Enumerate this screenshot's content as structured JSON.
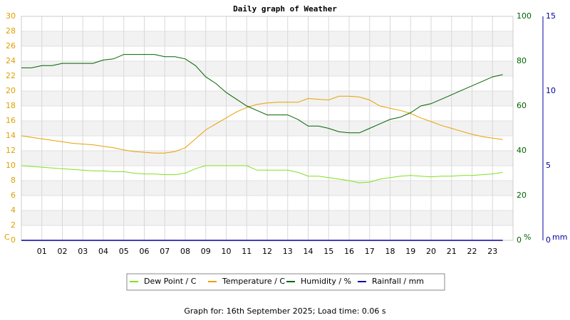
{
  "chart_data": {
    "type": "line",
    "title": "Daily graph of Weather",
    "footer": "Graph for: 16th September 2025; Load time: 0.06 s",
    "y_unit": "C",
    "y2_unit": "%",
    "y3_unit": "mm",
    "xlim": [
      0,
      24
    ],
    "xticks": [
      {
        "value": 1,
        "label": "01"
      },
      {
        "value": 2,
        "label": "02"
      },
      {
        "value": 3,
        "label": "03"
      },
      {
        "value": 4,
        "label": "04"
      },
      {
        "value": 5,
        "label": "05"
      },
      {
        "value": 6,
        "label": "06"
      },
      {
        "value": 7,
        "label": "07"
      },
      {
        "value": 8,
        "label": "08"
      },
      {
        "value": 9,
        "label": "09"
      },
      {
        "value": 10,
        "label": "10"
      },
      {
        "value": 11,
        "label": "11"
      },
      {
        "value": 12,
        "label": "12"
      },
      {
        "value": 13,
        "label": "13"
      },
      {
        "value": 14,
        "label": "14"
      },
      {
        "value": 15,
        "label": "15"
      },
      {
        "value": 16,
        "label": "16"
      },
      {
        "value": 17,
        "label": "17"
      },
      {
        "value": 18,
        "label": "18"
      },
      {
        "value": 19,
        "label": "19"
      },
      {
        "value": 20,
        "label": "20"
      },
      {
        "value": 21,
        "label": "21"
      },
      {
        "value": 22,
        "label": "22"
      },
      {
        "value": 23,
        "label": "23"
      }
    ],
    "ylim": [
      0,
      30
    ],
    "yticks": [
      0,
      2,
      4,
      6,
      8,
      10,
      12,
      14,
      16,
      18,
      20,
      22,
      24,
      26,
      28,
      30
    ],
    "y2lim": [
      0,
      100
    ],
    "y2ticks": [
      0,
      20,
      40,
      60,
      80,
      100
    ],
    "y3lim": [
      0,
      15
    ],
    "y3ticks": [
      0,
      5,
      10,
      15
    ],
    "grid": true,
    "x": [
      0,
      0.5,
      1,
      1.5,
      2,
      2.5,
      3,
      3.5,
      4,
      4.5,
      5,
      5.5,
      6,
      6.5,
      7,
      7.5,
      8,
      8.5,
      9,
      9.5,
      10,
      10.5,
      11,
      11.5,
      12,
      12.5,
      13,
      13.5,
      14,
      14.5,
      15,
      15.5,
      16,
      16.5,
      17,
      17.5,
      18,
      18.5,
      19,
      19.5,
      20,
      20.5,
      21,
      21.5,
      22,
      22.5,
      23,
      23.5
    ],
    "series": [
      {
        "name": "Dew Point / C",
        "color": "#80e020",
        "axis": "y",
        "values": [
          10,
          9.9,
          9.8,
          9.7,
          9.6,
          9.5,
          9.4,
          9.3,
          9.3,
          9.2,
          9.2,
          9.0,
          8.9,
          8.9,
          8.8,
          8.8,
          9.0,
          9.6,
          10,
          10,
          10,
          10,
          10,
          9.4,
          9.4,
          9.4,
          9.4,
          9.1,
          8.6,
          8.6,
          8.4,
          8.2,
          8.0,
          7.7,
          7.8,
          8.2,
          8.4,
          8.6,
          8.7,
          8.6,
          8.5,
          8.6,
          8.6,
          8.7,
          8.7,
          8.8,
          8.9,
          9.1
        ]
      },
      {
        "name": "Temperature / C",
        "color": "#e8a000",
        "axis": "y",
        "values": [
          14.0,
          13.8,
          13.6,
          13.4,
          13.2,
          13.0,
          12.9,
          12.8,
          12.6,
          12.4,
          12.1,
          11.9,
          11.8,
          11.7,
          11.7,
          11.9,
          12.4,
          13.6,
          14.8,
          15.6,
          16.4,
          17.2,
          17.8,
          18.2,
          18.4,
          18.5,
          18.5,
          18.5,
          19.0,
          18.9,
          18.8,
          19.3,
          19.3,
          19.2,
          18.8,
          18.0,
          17.7,
          17.4,
          17.0,
          16.4,
          15.9,
          15.4,
          15.0,
          14.6,
          14.2,
          13.9,
          13.7,
          13.5
        ]
      },
      {
        "name": "Humidity / %",
        "color": "#006400",
        "axis": "y2",
        "values": [
          77,
          77,
          78,
          78,
          79,
          79,
          79,
          79,
          80.5,
          81,
          83,
          83,
          83,
          83,
          82,
          82,
          81,
          78,
          73,
          70,
          66,
          63,
          60,
          58,
          56,
          56,
          56,
          54,
          51,
          51,
          50,
          48.5,
          48,
          48,
          50,
          52,
          54,
          55,
          57,
          60,
          61,
          63,
          65,
          67,
          69,
          71,
          73,
          74
        ]
      },
      {
        "name": "Rainfall / mm",
        "color": "#0000a0",
        "axis": "y3",
        "values": [
          0,
          0,
          0,
          0,
          0,
          0,
          0,
          0,
          0,
          0,
          0,
          0,
          0,
          0,
          0,
          0,
          0,
          0,
          0,
          0,
          0,
          0,
          0,
          0,
          0,
          0,
          0,
          0,
          0,
          0,
          0,
          0,
          0,
          0,
          0,
          0,
          0,
          0,
          0,
          0,
          0,
          0,
          0,
          0,
          0,
          0,
          0,
          0
        ]
      }
    ]
  }
}
